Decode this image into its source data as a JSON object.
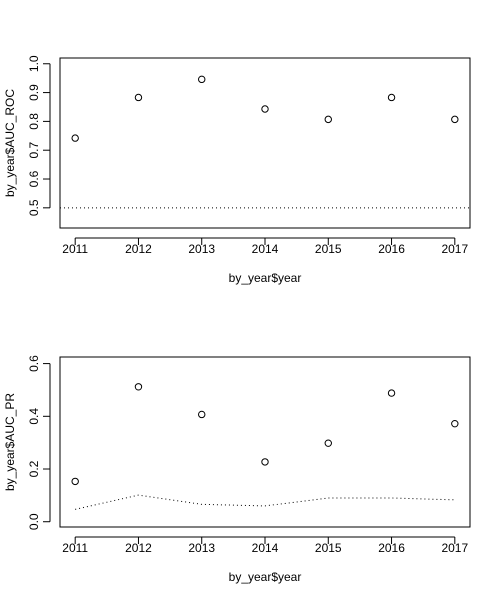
{
  "chart_data": [
    {
      "type": "scatter",
      "xlabel": "by_year$year",
      "ylabel": "by_year$AUC_ROC",
      "x": [
        2011,
        2012,
        2013,
        2014,
        2015,
        2016,
        2017
      ],
      "y": [
        0.742,
        0.883,
        0.946,
        0.843,
        0.807,
        0.883,
        0.807
      ],
      "xlim": [
        2010.76,
        2017.24
      ],
      "ylim": [
        0.43,
        1.02
      ],
      "xticks": [
        "2011",
        "2012",
        "2013",
        "2014",
        "2015",
        "2016",
        "2017"
      ],
      "yticks": [
        "0.5",
        "0.6",
        "0.7",
        "0.8",
        "0.9",
        "1.0"
      ],
      "reference_line": {
        "style": "dotted",
        "y": [
          0.5,
          0.5,
          0.5,
          0.5,
          0.5,
          0.5,
          0.5
        ]
      },
      "grid": false
    },
    {
      "type": "scatter",
      "xlabel": "by_year$year",
      "ylabel": "by_year$AUC_PR",
      "x": [
        2011,
        2012,
        2013,
        2014,
        2015,
        2016,
        2017
      ],
      "y": [
        0.153,
        0.512,
        0.407,
        0.227,
        0.298,
        0.488,
        0.372
      ],
      "xlim": [
        2010.76,
        2017.24
      ],
      "ylim": [
        -0.02,
        0.625
      ],
      "xticks": [
        "2011",
        "2012",
        "2013",
        "2014",
        "2015",
        "2016",
        "2017"
      ],
      "yticks": [
        "0.0",
        "0.2",
        "0.4",
        "0.6"
      ],
      "reference_line": {
        "style": "dotted",
        "y": [
          0.047,
          0.101,
          0.066,
          0.06,
          0.09,
          0.09,
          0.083
        ]
      },
      "grid": false
    }
  ]
}
